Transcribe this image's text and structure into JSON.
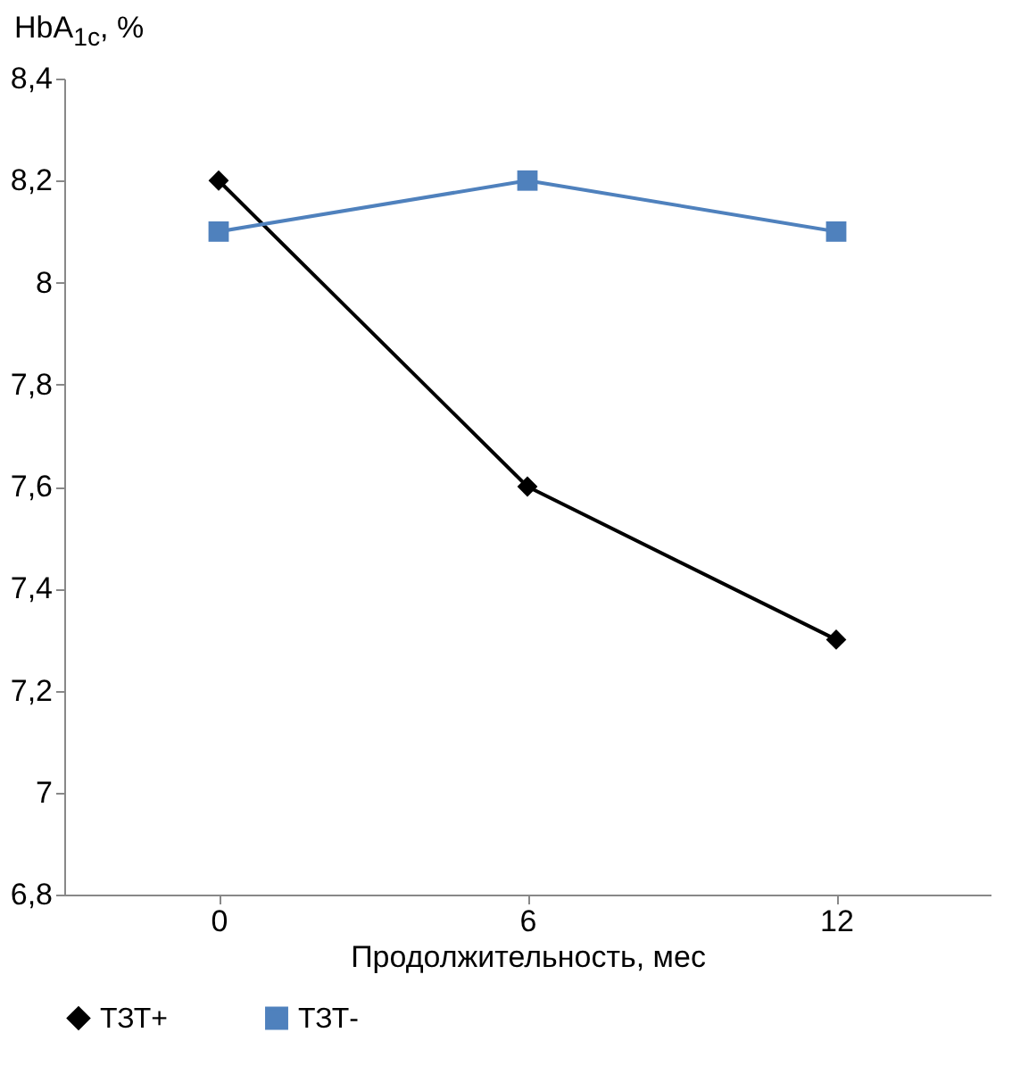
{
  "chart_data": {
    "type": "line",
    "ylabel": "HbA$_{1c}$, %",
    "xlabel": "Продолжительность, мес",
    "categories": [
      "0",
      "6",
      "12"
    ],
    "series": [
      {
        "name": "ТЗТ+",
        "color": "#000000",
        "marker": "diamond",
        "values": [
          8.2,
          7.6,
          7.3
        ]
      },
      {
        "name": "ТЗТ-",
        "color": "#4f81bd",
        "marker": "square",
        "values": [
          8.1,
          8.2,
          8.1
        ]
      }
    ],
    "ylim": [
      6.8,
      8.4
    ],
    "yticks": [
      {
        "value": 6.8,
        "label": "6,8"
      },
      7,
      {
        "value": 7.2,
        "label": "7,2"
      },
      {
        "value": 7.4,
        "label": "7,4"
      },
      {
        "value": 7.6,
        "label": "7,6"
      },
      {
        "value": 7.8,
        "label": "7,8"
      },
      8,
      {
        "value": 8.2,
        "label": "8,2"
      },
      {
        "value": 8.4,
        "label": "8,4"
      }
    ],
    "grid": false,
    "legend": "bottom",
    "line_style": "solid"
  }
}
